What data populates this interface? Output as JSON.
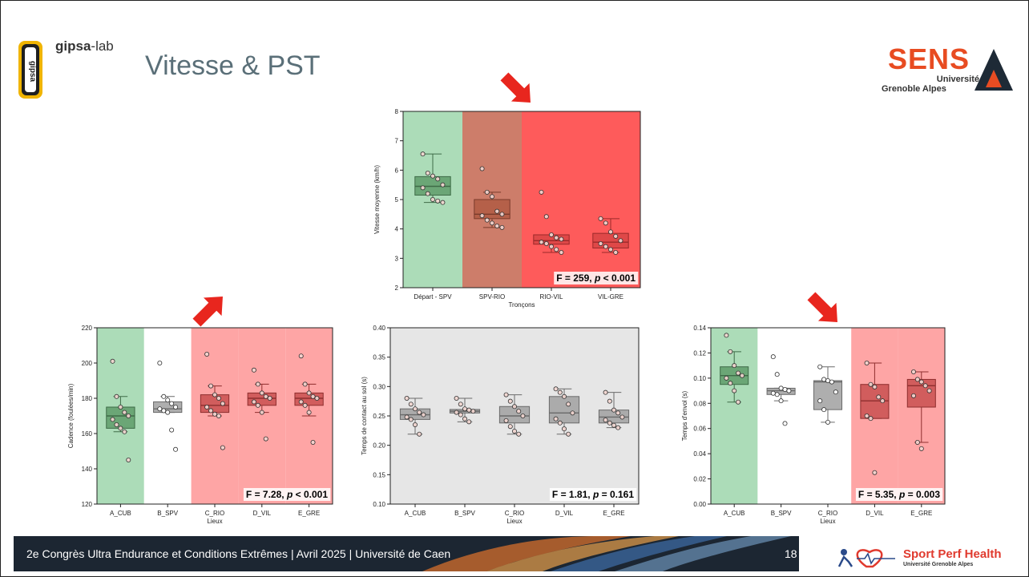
{
  "slide": {
    "title": "Vitesse & PST",
    "logo_gipsa": {
      "bold": "gipsa",
      "light": "-lab"
    },
    "logo_sens": {
      "word": "SENS",
      "line1": "Université",
      "line2": "Grenoble Alpes"
    },
    "logo_sph": {
      "name": "Sport Perf Health",
      "sub": "Université Grenoble Alpes"
    },
    "footer": {
      "text": "2e Congrès Ultra Endurance et Conditions Extrêmes | Avril 2025 | Université de Caen",
      "page": "18"
    },
    "colors": {
      "green_zone": "#acdcb8",
      "brown_zone": "#cd7d6a",
      "red_zone": "#fe5b5b",
      "pink_zone": "#fea5a5",
      "grey_zone": "#e6e6e6",
      "arrow": "#e8261e",
      "title": "#5a6f78"
    }
  },
  "chart_data": [
    {
      "id": "vitesse",
      "type": "box",
      "xlabel": "Tronçons",
      "ylabel": "Vitesse moyenne (km/h)",
      "ylim": [
        2,
        8
      ],
      "yticks": [
        2,
        3,
        4,
        5,
        6,
        7,
        8
      ],
      "categories": [
        "Départ - SPV",
        "SPV-RIO",
        "RIO-VIL",
        "VIL-GRE"
      ],
      "zones": [
        "green",
        "brown",
        "red",
        "red"
      ],
      "boxes": [
        {
          "min": 4.9,
          "q1": 5.15,
          "median": 5.45,
          "q3": 5.78,
          "max": 6.55,
          "points": [
            6.55,
            5.9,
            5.8,
            5.7,
            5.5,
            5.4,
            5.2,
            5.0,
            4.95,
            4.9
          ]
        },
        {
          "min": 4.05,
          "q1": 4.35,
          "median": 4.5,
          "q3": 5.0,
          "max": 5.25,
          "outliers": [
            6.05
          ],
          "points": [
            6.05,
            5.25,
            5.1,
            4.6,
            4.5,
            4.45,
            4.3,
            4.2,
            4.1,
            4.05
          ]
        },
        {
          "min": 3.2,
          "q1": 3.48,
          "median": 3.6,
          "q3": 3.8,
          "max": 3.8,
          "outliers": [
            5.25,
            4.42
          ],
          "points": [
            5.25,
            4.42,
            3.8,
            3.7,
            3.65,
            3.55,
            3.5,
            3.4,
            3.3,
            3.2
          ]
        },
        {
          "min": 3.2,
          "q1": 3.35,
          "median": 3.55,
          "q3": 3.85,
          "max": 4.35,
          "points": [
            4.35,
            4.2,
            3.9,
            3.75,
            3.6,
            3.5,
            3.4,
            3.3,
            3.2
          ]
        }
      ],
      "stat": {
        "F": "259",
        "p_op": "<",
        "p": "0.001"
      }
    },
    {
      "id": "cadence",
      "type": "box",
      "xlabel": "Lieux",
      "ylabel": "Cadence (foulées/min)",
      "ylim": [
        120,
        220
      ],
      "yticks": [
        120,
        140,
        160,
        180,
        200,
        220
      ],
      "categories": [
        "A_CUB",
        "B_SPV",
        "C_RIO",
        "D_VIL",
        "E_GRE"
      ],
      "zones": [
        "green",
        "white",
        "pink",
        "pink",
        "pink"
      ],
      "boxes": [
        {
          "min": 161,
          "q1": 163,
          "median": 170,
          "q3": 175,
          "max": 181,
          "outliers": [
            201,
            145
          ],
          "points": [
            201,
            181,
            175,
            172,
            170,
            168,
            165,
            163,
            161,
            145
          ]
        },
        {
          "min": 172,
          "q1": 172,
          "median": 174,
          "q3": 178,
          "max": 181,
          "outliers": [
            200,
            162,
            151
          ],
          "points": [
            200,
            181,
            179,
            177,
            175,
            174,
            173,
            172,
            162,
            151
          ]
        },
        {
          "min": 170,
          "q1": 172,
          "median": 176,
          "q3": 182,
          "max": 187,
          "outliers": [
            205,
            152
          ],
          "points": [
            205,
            187,
            182,
            180,
            177,
            175,
            173,
            171,
            170,
            152
          ]
        },
        {
          "min": 172,
          "q1": 176,
          "median": 180,
          "q3": 183,
          "max": 188,
          "outliers": [
            196,
            157
          ],
          "points": [
            196,
            188,
            183,
            181,
            180,
            178,
            176,
            172,
            157
          ]
        },
        {
          "min": 170,
          "q1": 176,
          "median": 180,
          "q3": 183,
          "max": 188,
          "outliers": [
            204,
            155
          ],
          "points": [
            204,
            188,
            183,
            181,
            180,
            178,
            176,
            172,
            155
          ]
        }
      ],
      "stat": {
        "F": "7.28",
        "p_op": "<",
        "p": "0.001"
      }
    },
    {
      "id": "contact",
      "type": "box",
      "xlabel": "Lieux",
      "ylabel": "Temps de contact au sol (s)",
      "ylim": [
        0.1,
        0.4
      ],
      "yticks": [
        "0.10",
        "0.15",
        "0.20",
        "0.25",
        "0.30",
        "0.35",
        "0.40"
      ],
      "categories": [
        "A_CUB",
        "B_SPV",
        "C_RIO",
        "D_VIL",
        "E_GRE"
      ],
      "zones": [
        "grey",
        "grey",
        "grey",
        "grey",
        "grey"
      ],
      "boxes": [
        {
          "min": 0.219,
          "q1": 0.244,
          "median": 0.252,
          "q3": 0.262,
          "max": 0.28,
          "points": [
            0.28,
            0.27,
            0.262,
            0.256,
            0.252,
            0.248,
            0.244,
            0.235,
            0.219
          ]
        },
        {
          "min": 0.24,
          "q1": 0.255,
          "median": 0.258,
          "q3": 0.261,
          "max": 0.28,
          "points": [
            0.28,
            0.27,
            0.262,
            0.26,
            0.258,
            0.256,
            0.252,
            0.245,
            0.24
          ]
        },
        {
          "min": 0.219,
          "q1": 0.238,
          "median": 0.25,
          "q3": 0.266,
          "max": 0.286,
          "points": [
            0.286,
            0.275,
            0.266,
            0.258,
            0.25,
            0.242,
            0.232,
            0.224,
            0.219
          ]
        },
        {
          "min": 0.219,
          "q1": 0.238,
          "median": 0.255,
          "q3": 0.283,
          "max": 0.296,
          "points": [
            0.296,
            0.29,
            0.283,
            0.27,
            0.255,
            0.245,
            0.238,
            0.228,
            0.219
          ]
        },
        {
          "min": 0.23,
          "q1": 0.238,
          "median": 0.248,
          "q3": 0.26,
          "max": 0.29,
          "points": [
            0.29,
            0.275,
            0.26,
            0.255,
            0.248,
            0.243,
            0.238,
            0.234,
            0.23
          ]
        }
      ],
      "stat": {
        "F": "1.81",
        "p_op": "=",
        "p": "0.161"
      }
    },
    {
      "id": "envol",
      "type": "box",
      "xlabel": "Lieux",
      "ylabel": "Temps d'envol (s)",
      "ylim": [
        0.0,
        0.14
      ],
      "yticks": [
        "0.00",
        "0.02",
        "0.04",
        "0.06",
        "0.08",
        "0.10",
        "0.12",
        "0.14"
      ],
      "categories": [
        "A_CUB",
        "B_SPV",
        "C_RIO",
        "D_VIL",
        "E_GRE"
      ],
      "zones": [
        "green",
        "white",
        "white",
        "pink",
        "pink"
      ],
      "boxes": [
        {
          "min": 0.081,
          "q1": 0.095,
          "median": 0.102,
          "q3": 0.109,
          "max": 0.121,
          "outliers": [
            0.134
          ],
          "points": [
            0.134,
            0.121,
            0.11,
            0.104,
            0.102,
            0.1,
            0.096,
            0.09,
            0.081
          ]
        },
        {
          "min": 0.082,
          "q1": 0.087,
          "median": 0.09,
          "q3": 0.092,
          "max": 0.092,
          "outliers": [
            0.117,
            0.103,
            0.064
          ],
          "points": [
            0.117,
            0.103,
            0.092,
            0.091,
            0.09,
            0.088,
            0.087,
            0.082,
            0.064
          ]
        },
        {
          "min": 0.065,
          "q1": 0.075,
          "median": 0.097,
          "q3": 0.098,
          "max": 0.109,
          "points": [
            0.109,
            0.099,
            0.098,
            0.097,
            0.089,
            0.082,
            0.075,
            0.065
          ]
        },
        {
          "min": 0.068,
          "q1": 0.068,
          "median": 0.082,
          "q3": 0.095,
          "max": 0.112,
          "outliers": [
            0.025
          ],
          "points": [
            0.112,
            0.095,
            0.093,
            0.085,
            0.082,
            0.07,
            0.068,
            0.025
          ]
        },
        {
          "min": 0.049,
          "q1": 0.077,
          "median": 0.094,
          "q3": 0.099,
          "max": 0.105,
          "outliers": [
            0.044
          ],
          "points": [
            0.105,
            0.099,
            0.097,
            0.094,
            0.09,
            0.086,
            0.049,
            0.044
          ]
        }
      ],
      "stat": {
        "F": "5.35",
        "p_op": "=",
        "p": "0.003"
      }
    }
  ]
}
